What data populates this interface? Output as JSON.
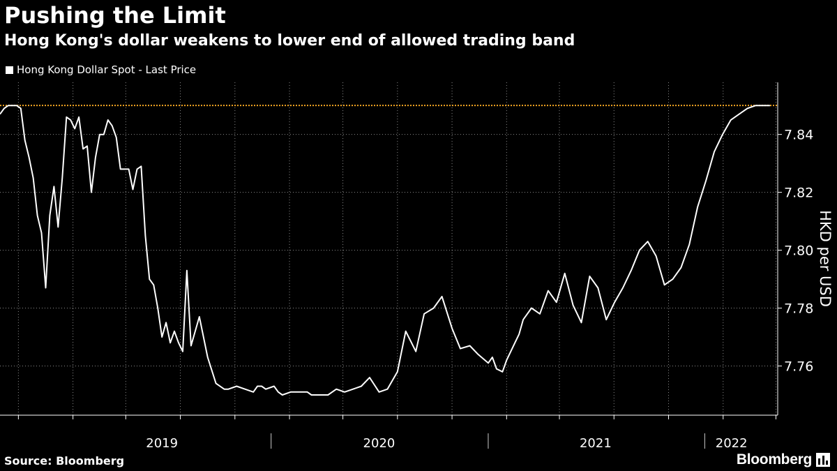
{
  "header": {
    "title": "Pushing the Limit",
    "subtitle": "Hong Kong's dollar weakens to lower end of allowed trading band"
  },
  "legend": {
    "series_label": "Hong Kong Dollar Spot - Last Price"
  },
  "footer": {
    "source": "Source: Bloomberg",
    "brand": "Bloomberg"
  },
  "colors": {
    "background": "#000000",
    "line": "#ffffff",
    "reference_line": "#f5a623"
  },
  "chart_data": {
    "type": "line",
    "title": "Pushing the Limit",
    "subtitle": "Hong Kong's dollar weakens to lower end of allowed trading band",
    "xlabel": "",
    "ylabel": "HKD per USD",
    "ylim": [
      7.743,
      7.858
    ],
    "xlim": [
      "2018-10-01",
      "2022-05-04"
    ],
    "y_ticks": [
      "7.76",
      "7.78",
      "7.80",
      "7.82",
      "7.84"
    ],
    "y_tick_values": [
      7.76,
      7.78,
      7.8,
      7.82,
      7.84
    ],
    "x_ticks": [
      "2019",
      "2020",
      "2021",
      "2022"
    ],
    "x_tick_dates": [
      "2019-07-01",
      "2020-07-01",
      "2021-07-01",
      "2022-02-15"
    ],
    "year_boundaries": [
      "2020-01-01",
      "2021-01-01",
      "2022-01-01"
    ],
    "month_ticks": [
      "2018-11-01",
      "2019-02-01",
      "2019-05-01",
      "2019-08-01",
      "2019-11-01",
      "2020-02-01",
      "2020-05-01",
      "2020-08-01",
      "2020-11-01",
      "2021-02-01",
      "2021-05-01",
      "2021-08-01",
      "2021-11-01",
      "2022-02-01",
      "2022-05-01"
    ],
    "grid": true,
    "reference_line": {
      "value": 7.85,
      "style": "dotted"
    },
    "legend_position": "top-left",
    "series": [
      {
        "name": "Hong Kong Dollar Spot - Last Price",
        "x": [
          "2018-10-01",
          "2018-10-08",
          "2018-10-15",
          "2018-10-29",
          "2018-11-05",
          "2018-11-12",
          "2018-11-19",
          "2018-11-26",
          "2018-12-03",
          "2018-12-10",
          "2018-12-17",
          "2018-12-24",
          "2018-12-31",
          "2019-01-07",
          "2019-01-14",
          "2019-01-21",
          "2019-01-28",
          "2019-02-04",
          "2019-02-11",
          "2019-02-18",
          "2019-02-25",
          "2019-03-04",
          "2019-03-11",
          "2019-03-18",
          "2019-03-25",
          "2019-04-01",
          "2019-04-08",
          "2019-04-15",
          "2019-04-22",
          "2019-04-29",
          "2019-05-06",
          "2019-05-13",
          "2019-05-20",
          "2019-05-27",
          "2019-06-03",
          "2019-06-10",
          "2019-06-17",
          "2019-06-24",
          "2019-07-01",
          "2019-07-08",
          "2019-07-15",
          "2019-07-22",
          "2019-07-29",
          "2019-08-05",
          "2019-08-12",
          "2019-08-19",
          "2019-09-02",
          "2019-09-16",
          "2019-09-30",
          "2019-10-14",
          "2019-10-21",
          "2019-11-04",
          "2019-11-18",
          "2019-12-02",
          "2019-12-09",
          "2019-12-16",
          "2019-12-23",
          "2020-01-06",
          "2020-01-13",
          "2020-01-20",
          "2020-02-03",
          "2020-02-17",
          "2020-03-02",
          "2020-03-09",
          "2020-03-16",
          "2020-03-23",
          "2020-04-06",
          "2020-04-20",
          "2020-05-04",
          "2020-05-18",
          "2020-06-01",
          "2020-06-15",
          "2020-07-01",
          "2020-07-15",
          "2020-08-01",
          "2020-08-15",
          "2020-09-01",
          "2020-09-15",
          "2020-10-01",
          "2020-10-15",
          "2020-11-01",
          "2020-11-15",
          "2020-12-01",
          "2020-12-15",
          "2021-01-01",
          "2021-01-08",
          "2021-01-15",
          "2021-01-25",
          "2021-02-01",
          "2021-02-08",
          "2021-02-15",
          "2021-02-22",
          "2021-03-01",
          "2021-03-15",
          "2021-03-29",
          "2021-04-12",
          "2021-04-26",
          "2021-05-10",
          "2021-05-24",
          "2021-06-07",
          "2021-06-21",
          "2021-07-05",
          "2021-07-19",
          "2021-08-02",
          "2021-08-16",
          "2021-08-30",
          "2021-09-13",
          "2021-09-27",
          "2021-10-11",
          "2021-10-25",
          "2021-11-08",
          "2021-11-22",
          "2021-12-06",
          "2021-12-20",
          "2022-01-03",
          "2022-01-17",
          "2022-01-31",
          "2022-02-14",
          "2022-02-28",
          "2022-03-14",
          "2022-03-28",
          "2022-04-11",
          "2022-04-21"
        ],
        "values": [
          7.847,
          7.849,
          7.85,
          7.85,
          7.849,
          7.838,
          7.832,
          7.825,
          7.812,
          7.806,
          7.787,
          7.812,
          7.822,
          7.808,
          7.825,
          7.846,
          7.845,
          7.842,
          7.846,
          7.835,
          7.836,
          7.82,
          7.832,
          7.84,
          7.84,
          7.845,
          7.843,
          7.839,
          7.828,
          7.828,
          7.828,
          7.821,
          7.828,
          7.829,
          7.805,
          7.79,
          7.788,
          7.78,
          7.77,
          7.775,
          7.768,
          7.772,
          7.768,
          7.765,
          7.793,
          7.767,
          7.777,
          7.763,
          7.754,
          7.752,
          7.752,
          7.753,
          7.752,
          7.751,
          7.753,
          7.753,
          7.752,
          7.753,
          7.751,
          7.75,
          7.751,
          7.751,
          7.751,
          7.75,
          7.75,
          7.75,
          7.75,
          7.752,
          7.751,
          7.752,
          7.753,
          7.756,
          7.751,
          7.752,
          7.758,
          7.772,
          7.765,
          7.778,
          7.78,
          7.784,
          7.773,
          7.766,
          7.767,
          7.764,
          7.761,
          7.763,
          7.759,
          7.758,
          7.762,
          7.765,
          7.768,
          7.771,
          7.776,
          7.78,
          7.778,
          7.786,
          7.782,
          7.792,
          7.781,
          7.775,
          7.791,
          7.787,
          7.776,
          7.782,
          7.787,
          7.793,
          7.8,
          7.803,
          7.798,
          7.788,
          7.79,
          7.794,
          7.802,
          7.815,
          7.824,
          7.834,
          7.84,
          7.845,
          7.847,
          7.849,
          7.85,
          7.85,
          7.85
        ]
      }
    ]
  }
}
